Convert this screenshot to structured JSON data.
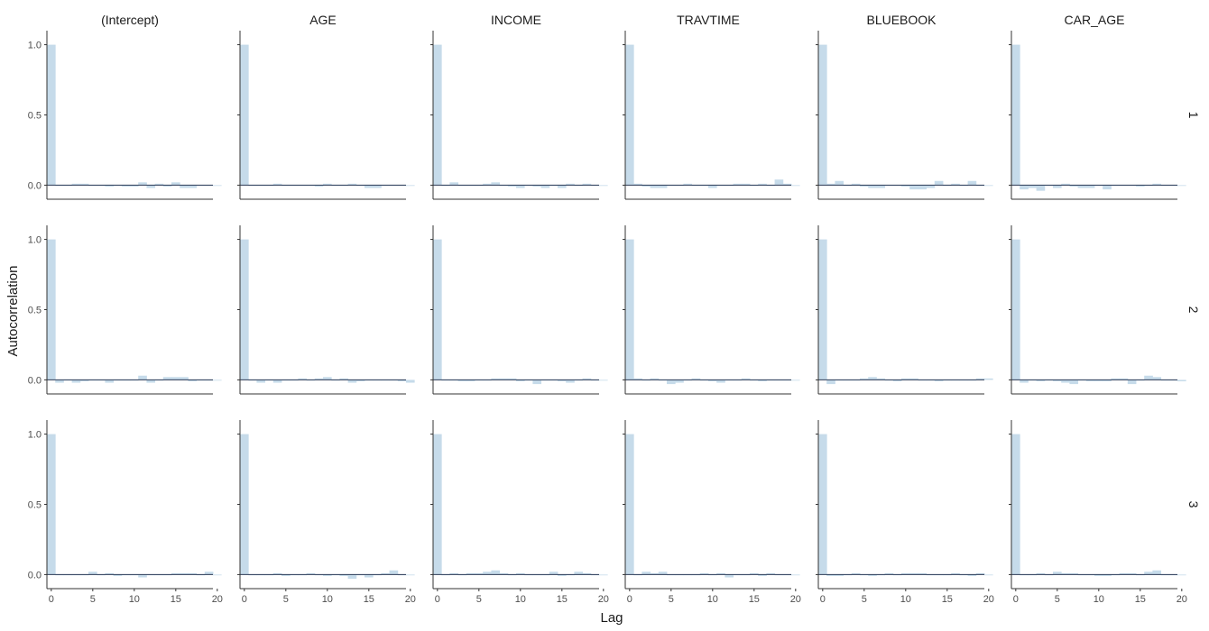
{
  "chart_data": {
    "type": "bar",
    "xlabel": "Lag",
    "ylabel": "Autocorrelation",
    "columns": [
      "(Intercept)",
      "AGE",
      "INCOME",
      "TRAVTIME",
      "BLUEBOOK",
      "CAR_AGE"
    ],
    "rows": [
      "1",
      "2",
      "3"
    ],
    "xlim": [
      0,
      20
    ],
    "ylim": [
      -0.1,
      1.1
    ],
    "x_ticks": [
      0,
      5,
      10,
      15,
      20
    ],
    "y_ticks": [
      0.0,
      0.5,
      1.0
    ],
    "y_tick_labels": [
      "0.0",
      "0.5",
      "1.0"
    ],
    "lags": [
      0,
      1,
      2,
      3,
      4,
      5,
      6,
      7,
      8,
      9,
      10,
      11,
      12,
      13,
      14,
      15,
      16,
      17,
      18,
      19,
      20
    ],
    "grid": false,
    "bar_color": "#c6dbea",
    "line_color": "#2b3a55",
    "panels": [
      [
        [
          1,
          0,
          0,
          0.01,
          0.01,
          0,
          0,
          -0.01,
          0,
          -0.01,
          -0.01,
          0.02,
          -0.02,
          0.01,
          -0.01,
          0.02,
          -0.02,
          -0.02,
          0,
          0,
          0
        ],
        [
          1,
          0,
          0,
          0,
          0.01,
          0,
          0,
          0,
          0,
          -0.01,
          0.01,
          0,
          0,
          0.01,
          0,
          -0.02,
          -0.02,
          0,
          0,
          0,
          0
        ],
        [
          1,
          0,
          0.02,
          0,
          0,
          0,
          0.01,
          0.02,
          0,
          -0.01,
          -0.02,
          0,
          -0.01,
          -0.02,
          0,
          -0.02,
          0.01,
          0,
          0.01,
          0,
          0
        ],
        [
          1,
          0.01,
          -0.01,
          -0.02,
          -0.02,
          0,
          0,
          0.01,
          0,
          0,
          -0.02,
          0,
          0,
          0.01,
          0.01,
          0,
          0.01,
          0,
          0.04,
          0.01,
          0
        ],
        [
          1,
          0.01,
          0.03,
          0,
          0.01,
          -0.01,
          -0.02,
          -0.02,
          0,
          0,
          -0.01,
          -0.03,
          -0.03,
          -0.02,
          0.03,
          0,
          0.01,
          0,
          0.03,
          0,
          0
        ],
        [
          1,
          -0.03,
          -0.02,
          -0.04,
          0,
          -0.02,
          0.01,
          -0.01,
          -0.02,
          -0.02,
          0,
          -0.03,
          0,
          0,
          0,
          -0.01,
          0,
          0.01,
          0,
          0,
          0
        ]
      ],
      [
        [
          1,
          -0.02,
          0,
          -0.02,
          -0.01,
          0,
          0,
          -0.02,
          0,
          0,
          0,
          0.03,
          -0.02,
          0,
          0.02,
          0.02,
          0.02,
          -0.01,
          0,
          0,
          0
        ],
        [
          1,
          0,
          -0.02,
          0,
          -0.02,
          0,
          0,
          0.01,
          0,
          0.01,
          0.02,
          0,
          0.01,
          -0.02,
          -0.01,
          0,
          0,
          0,
          0,
          -0.01,
          -0.02
        ],
        [
          1,
          0,
          0,
          -0.01,
          -0.01,
          0,
          0,
          0.01,
          0.01,
          0.01,
          -0.01,
          0,
          -0.03,
          0,
          0,
          -0.01,
          -0.02,
          0,
          0.01,
          0,
          0
        ],
        [
          1,
          0.01,
          0,
          0.01,
          0,
          -0.03,
          -0.02,
          0,
          0.01,
          0,
          -0.01,
          -0.02,
          0,
          0,
          0.01,
          0,
          -0.01,
          0,
          0,
          0,
          0
        ],
        [
          1,
          -0.03,
          0,
          0,
          0,
          0.01,
          0.02,
          0.01,
          0,
          -0.01,
          0.01,
          0.01,
          0,
          0,
          -0.01,
          0,
          0,
          0,
          0,
          0.01,
          0.01
        ],
        [
          1,
          -0.02,
          0,
          -0.01,
          0,
          -0.01,
          -0.02,
          -0.03,
          0,
          -0.01,
          -0.01,
          -0.01,
          0.01,
          0.01,
          -0.03,
          0,
          0.03,
          0.02,
          0,
          0,
          -0.01
        ]
      ],
      [
        [
          1,
          0,
          0,
          0,
          0,
          0.02,
          0,
          0.01,
          -0.01,
          0,
          0,
          -0.02,
          0,
          0,
          0,
          0.01,
          0.01,
          0.01,
          0,
          0.02,
          0
        ],
        [
          1,
          0,
          0,
          0,
          0.01,
          -0.01,
          0,
          0,
          0.01,
          0,
          -0.01,
          0,
          -0.01,
          -0.03,
          0,
          -0.02,
          0,
          0.01,
          0.03,
          0,
          0
        ],
        [
          1,
          0,
          0.01,
          0,
          0.01,
          0.01,
          0.02,
          0.03,
          0.01,
          0,
          0.01,
          0,
          0,
          0,
          0.02,
          -0.01,
          0,
          0.02,
          0.01,
          0,
          0
        ],
        [
          1,
          0,
          0.02,
          0.01,
          0.02,
          0,
          0,
          0,
          0,
          0.01,
          0,
          0.01,
          -0.02,
          0,
          0,
          0.01,
          -0.01,
          0.01,
          0,
          0,
          0
        ],
        [
          1,
          -0.01,
          -0.01,
          0,
          0.01,
          0,
          -0.01,
          0,
          0.01,
          0,
          0.01,
          0.01,
          0.01,
          0,
          0,
          0,
          0.01,
          0,
          -0.01,
          0.01,
          0
        ],
        [
          1,
          0,
          0,
          0.01,
          0,
          0.02,
          0.01,
          0.01,
          0,
          0,
          -0.01,
          -0.01,
          0,
          0.01,
          0.01,
          0,
          0.02,
          0.03,
          0,
          0,
          0
        ]
      ]
    ]
  }
}
